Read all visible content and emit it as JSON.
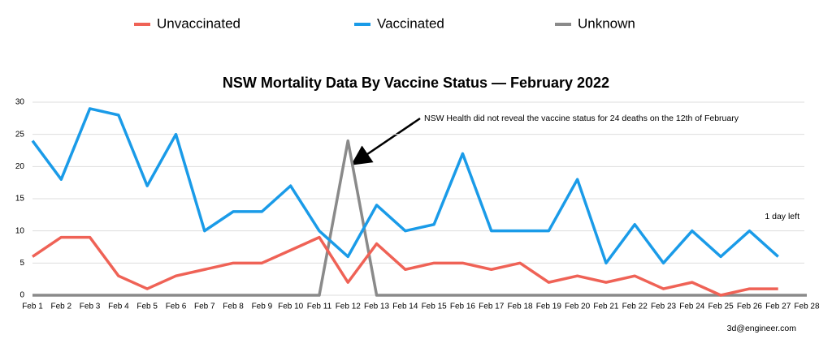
{
  "chart_data": {
    "type": "line",
    "title": "NSW Mortality Data By Vaccine Status — February 2022",
    "categories": [
      "Feb 1",
      "Feb 2",
      "Feb 3",
      "Feb 4",
      "Feb 5",
      "Feb 6",
      "Feb 7",
      "Feb 8",
      "Feb 9",
      "Feb 10",
      "Feb 11",
      "Feb 12",
      "Feb 13",
      "Feb 14",
      "Feb 15",
      "Feb 16",
      "Feb 17",
      "Feb 18",
      "Feb 19",
      "Feb 20",
      "Feb 21",
      "Feb 22",
      "Feb 23",
      "Feb 24",
      "Feb 25",
      "Feb 26",
      "Feb 27",
      "Feb 28"
    ],
    "series": [
      {
        "name": "Unvaccinated",
        "color": "#ef6256",
        "values": [
          6,
          9,
          9,
          3,
          1,
          3,
          4,
          5,
          5,
          7,
          9,
          2,
          8,
          4,
          5,
          5,
          4,
          5,
          2,
          3,
          2,
          3,
          1,
          2,
          0,
          1,
          1,
          null
        ]
      },
      {
        "name": "Vaccinated",
        "color": "#1a9be8",
        "values": [
          24,
          18,
          29,
          28,
          17,
          25,
          10,
          13,
          13,
          17,
          10,
          6,
          14,
          10,
          11,
          22,
          10,
          10,
          10,
          18,
          5,
          11,
          5,
          10,
          6,
          10,
          6,
          null
        ]
      },
      {
        "name": "Unknown",
        "color": "#8a8a8a",
        "values": [
          0,
          0,
          0,
          0,
          0,
          0,
          0,
          0,
          0,
          0,
          0,
          24,
          0,
          0,
          0,
          0,
          0,
          0,
          0,
          0,
          0,
          0,
          0,
          0,
          0,
          0,
          0,
          0
        ]
      }
    ],
    "ylim": [
      0,
      30
    ],
    "yticks": [
      0,
      5,
      10,
      15,
      20,
      25,
      30
    ],
    "grid": true,
    "annotations": [
      "NSW Health did not reveal the vaccine status for 24 deaths on the 12th of February",
      "1 day left",
      "3d@engineer.com"
    ]
  }
}
